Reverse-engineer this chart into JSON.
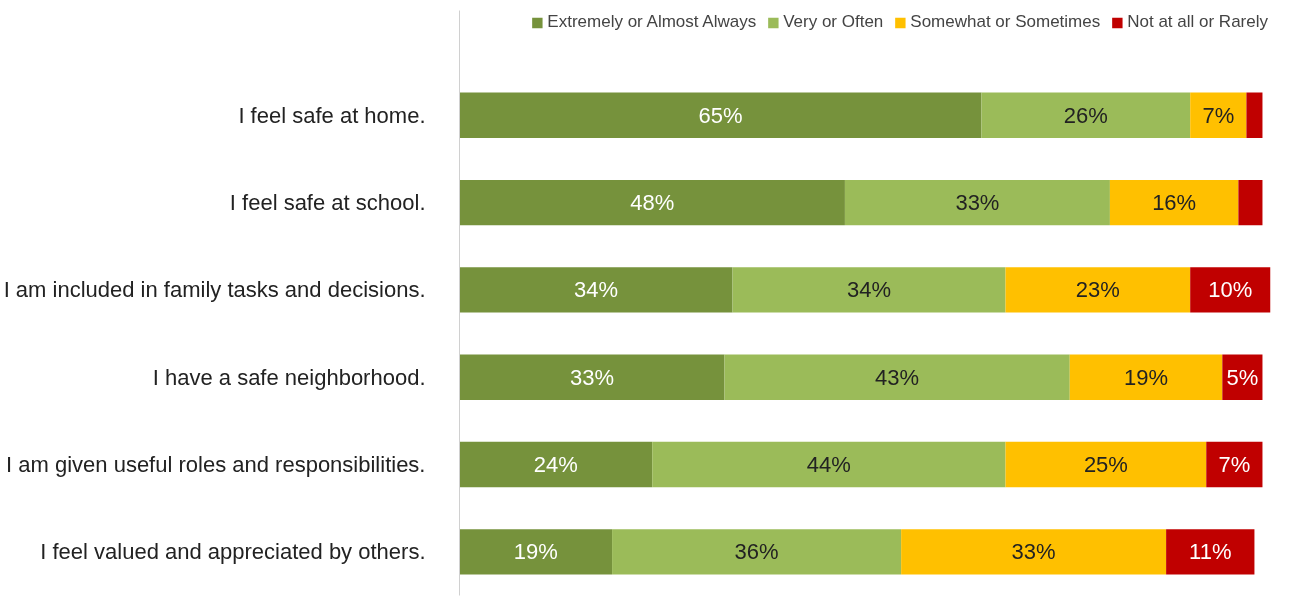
{
  "chart_data": {
    "type": "bar",
    "orientation": "horizontal",
    "stacked": true,
    "legend": "top",
    "grid": false,
    "tick_labels": "y",
    "categories": [
      "I feel safe at home.",
      "I feel safe at school.",
      "I am included in family tasks and decisions.",
      "I have a safe neighborhood.",
      "I am given useful roles and responsibilities.",
      "I feel valued and appreciated by others."
    ],
    "series": [
      {
        "name": "Extremely or Almost Always",
        "color": "#76923c",
        "values": [
          65,
          48,
          34,
          33,
          24,
          19
        ],
        "value_labels": [
          "65%",
          "48%",
          "34%",
          "33%",
          "24%",
          "19%"
        ]
      },
      {
        "name": "Very or Often",
        "color": "#9bbb59",
        "values": [
          26,
          33,
          34,
          43,
          44,
          36
        ],
        "value_labels": [
          "26%",
          "33%",
          "34%",
          "43%",
          "44%",
          "36%"
        ]
      },
      {
        "name": "Somewhat or Sometimes",
        "color": "#ffc000",
        "values": [
          7,
          16,
          23,
          19,
          25,
          33
        ],
        "value_labels": [
          "7%",
          "16%",
          "23%",
          "19%",
          "25%",
          "33%"
        ]
      },
      {
        "name": "Not at all or Rarely",
        "color": "#c00000",
        "values": [
          2,
          3,
          10,
          5,
          7,
          11
        ],
        "value_labels": [
          null,
          null,
          "10%",
          "5%",
          "7%",
          "11%"
        ]
      }
    ]
  }
}
